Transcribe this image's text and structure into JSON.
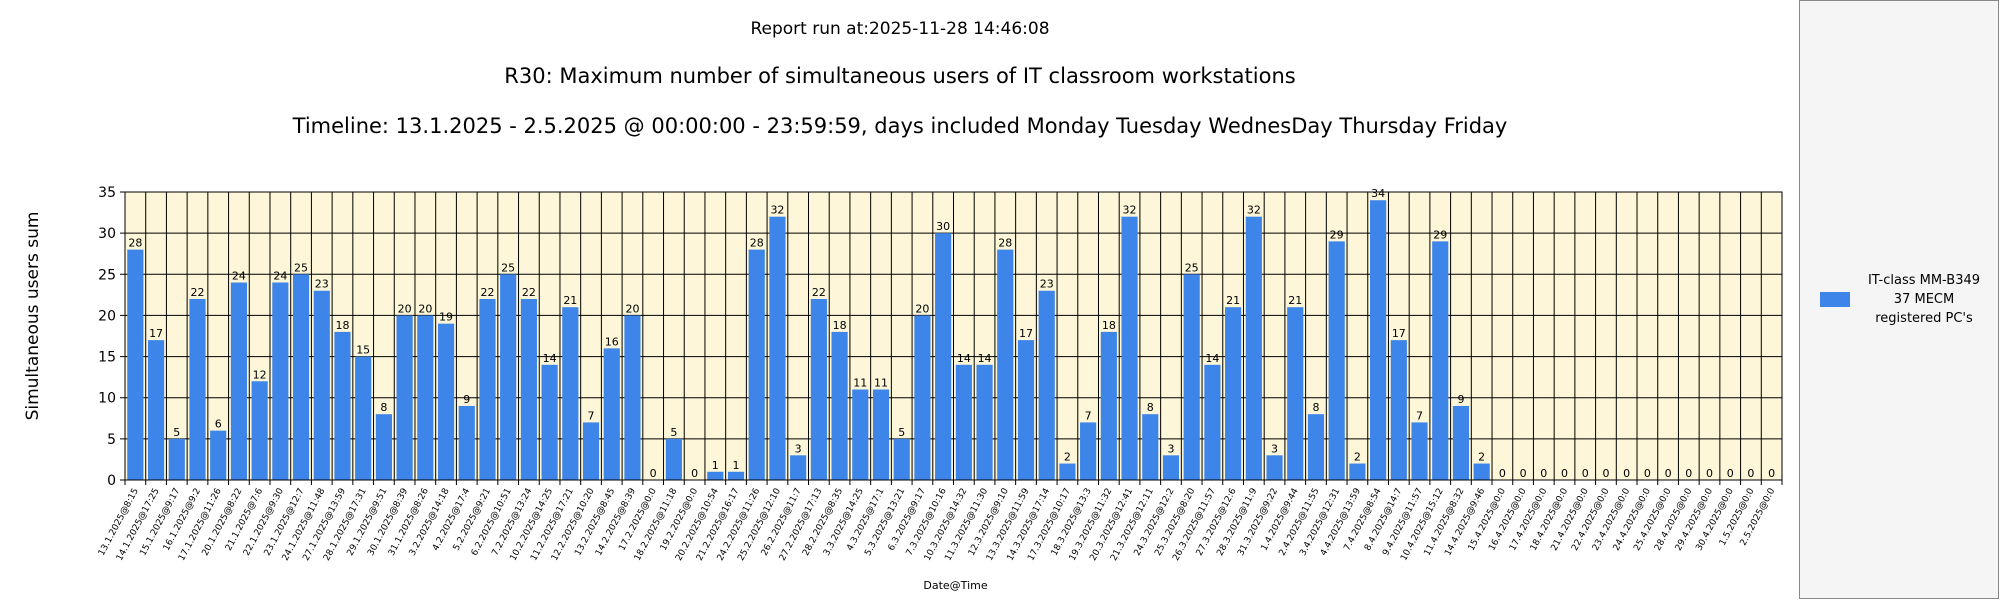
{
  "report": {
    "run_line": "Report run at:2025-11-28 14:46:08",
    "title": "R30: Maximum number of simultaneous users of IT classroom workstations",
    "timeline": "Timeline: 13.1.2025  - 2.5.2025  @  00:00:00 -  23:59:59, days included Monday Tuesday WednesDay Thursday Friday"
  },
  "legend": {
    "lines": [
      "IT-class MM-B349",
      "37 MECM",
      "registered PC's"
    ]
  },
  "colors": {
    "bar": "#3d85e8",
    "plot_bg": "#fdf6d8",
    "grid": "#000000"
  },
  "chart_data": {
    "type": "bar",
    "title": "R30: Maximum number of simultaneous users of IT classroom workstations",
    "xlabel": "Date@Time",
    "ylabel": "Simultaneous users sum",
    "ylim": [
      0,
      35
    ],
    "yticks": [
      0,
      5,
      10,
      15,
      20,
      25,
      30,
      35
    ],
    "grid": true,
    "legend_position": "right",
    "series": [
      {
        "name": "IT-class MM-B349 37 MECM registered PC's"
      }
    ],
    "categories": [
      "13.1.2025@8:15",
      "14.1.2025@17:25",
      "15.1.2025@9:17",
      "16.1.2025@9:2",
      "17.1.2025@11:26",
      "20.1.2025@8:22",
      "21.1.2025@7:6",
      "22.1.2025@9:30",
      "23.1.2025@12:7",
      "24.1.2025@11:48",
      "27.1.2025@13:59",
      "28.1.2025@17:31",
      "29.1.2025@9:51",
      "30.1.2025@8:39",
      "31.1.2025@8:26",
      "3.2.2025@14:18",
      "4.2.2025@17:4",
      "5.2.2025@9:21",
      "6.2.2025@10:51",
      "7.2.2025@13:24",
      "10.2.2025@14:25",
      "11.2.2025@17:21",
      "12.2.2025@10:20",
      "13.2.2025@8:45",
      "14.2.2025@8:39",
      "17.2.2025@0:0",
      "18.2.2025@11:18",
      "19.2.2025@0:0",
      "20.2.2025@10:54",
      "21.2.2025@16:17",
      "24.2.2025@11:26",
      "25.2.2025@12:10",
      "26.2.2025@11:7",
      "27.2.2025@17:13",
      "28.2.2025@8:35",
      "3.3.2025@14:25",
      "4.3.2025@17:1",
      "5.3.2025@13:21",
      "6.3.2025@9:17",
      "7.3.2025@10:16",
      "10.3.2025@14:32",
      "11.3.2025@11:30",
      "12.3.2025@9:10",
      "13.3.2025@11:59",
      "14.3.2025@17:14",
      "17.3.2025@10:17",
      "18.3.2025@13:3",
      "19.3.2025@11:32",
      "20.3.2025@12:41",
      "21.3.2025@12:11",
      "24.3.2025@12:2",
      "25.3.2025@8:20",
      "26.3.2025@11:57",
      "27.3.2025@12:6",
      "28.3.2025@11:9",
      "31.3.2025@9:22",
      "1.4.2025@9:44",
      "2.4.2025@11:55",
      "3.4.2025@12:31",
      "4.4.2025@13:59",
      "7.4.2025@8:54",
      "8.4.2025@14:7",
      "9.4.2025@11:57",
      "10.4.2025@15:12",
      "11.4.2025@8:32",
      "14.4.2025@9:46",
      "15.4.2025@0:0",
      "16.4.2025@0:0",
      "17.4.2025@0:0",
      "18.4.2025@0:0",
      "21.4.2025@0:0",
      "22.4.2025@0:0",
      "23.4.2025@0:0",
      "24.4.2025@0:0",
      "25.4.2025@0:0",
      "28.4.2025@0:0",
      "29.4.2025@0:0",
      "30.4.2025@0:0",
      "1.5.2025@0:0",
      "2.5.2025@0:0"
    ],
    "values": [
      28,
      17,
      5,
      22,
      6,
      24,
      12,
      24,
      25,
      23,
      18,
      15,
      8,
      20,
      20,
      19,
      9,
      22,
      25,
      22,
      14,
      21,
      7,
      16,
      20,
      0,
      5,
      0,
      1,
      1,
      28,
      32,
      3,
      22,
      18,
      11,
      11,
      5,
      20,
      30,
      14,
      14,
      28,
      17,
      23,
      2,
      7,
      18,
      32,
      8,
      3,
      25,
      14,
      21,
      32,
      3,
      21,
      8,
      29,
      2,
      34,
      17,
      7,
      29,
      9,
      2,
      0,
      0,
      0,
      0,
      0,
      0,
      0,
      0,
      0,
      0,
      0,
      0,
      0,
      0
    ]
  }
}
